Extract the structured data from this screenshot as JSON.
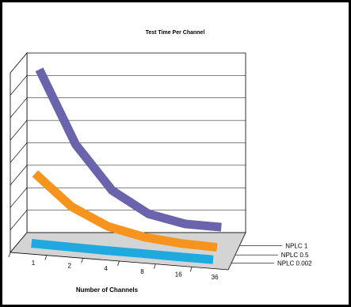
{
  "chart_data": {
    "type": "line",
    "title": "Test Time Per Channel",
    "xlabel": "Number of Channels",
    "ylabel": "",
    "categories": [
      "1",
      "2",
      "4",
      "8",
      "16",
      "36"
    ],
    "ylim": [
      0,
      8
    ],
    "grid": true,
    "three_d": true,
    "y_tick_labels_shown": false,
    "series": [
      {
        "name": "NPLC 1",
        "color": "#6a64ad",
        "values": [
          7.6,
          4.3,
          2.3,
          1.3,
          0.9,
          0.8
        ]
      },
      {
        "name": "NPLC 0.5",
        "color": "#f7941d",
        "values": [
          3.2,
          1.8,
          1.0,
          0.6,
          0.4,
          0.3
        ]
      },
      {
        "name": "NPLC 0.002",
        "color": "#1fa9df",
        "values": [
          0.3,
          0.25,
          0.2,
          0.17,
          0.13,
          0.1
        ]
      }
    ]
  }
}
